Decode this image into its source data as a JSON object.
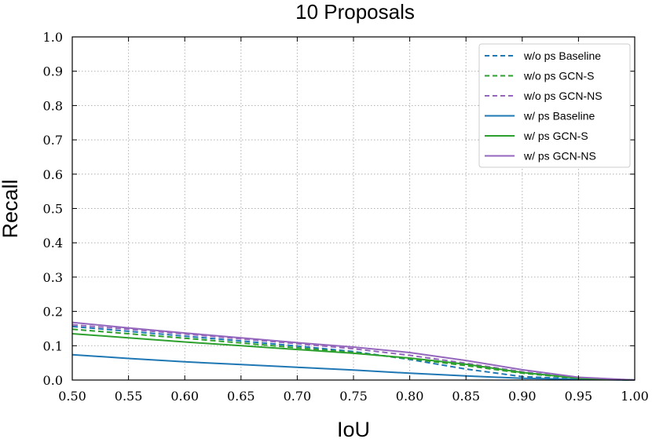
{
  "chart_data": {
    "type": "line",
    "title": "10 Proposals",
    "xlabel": "IoU",
    "ylabel": "Recall",
    "xlim": [
      0.5,
      1.0
    ],
    "ylim": [
      0.0,
      1.0
    ],
    "xticks": [
      "0.50",
      "0.55",
      "0.60",
      "0.65",
      "0.70",
      "0.75",
      "0.80",
      "0.85",
      "0.90",
      "0.95",
      "1.00"
    ],
    "yticks": [
      "0.0",
      "0.1",
      "0.2",
      "0.3",
      "0.4",
      "0.5",
      "0.6",
      "0.7",
      "0.8",
      "0.9",
      "1.0"
    ],
    "grid": true,
    "legend_position": "top-right",
    "x": [
      0.5,
      0.55,
      0.6,
      0.65,
      0.7,
      0.75,
      0.8,
      0.85,
      0.9,
      0.95,
      1.0
    ],
    "series": [
      {
        "name": "w/o ps Baseline",
        "color": "#1f77b4",
        "style": "dashed",
        "values": [
          0.156,
          0.142,
          0.128,
          0.114,
          0.099,
          0.083,
          0.06,
          0.032,
          0.01,
          0.003,
          0.0
        ]
      },
      {
        "name": "w/o ps GCN-S",
        "color": "#2ca02c",
        "style": "dashed",
        "values": [
          0.148,
          0.135,
          0.122,
          0.108,
          0.094,
          0.08,
          0.062,
          0.042,
          0.02,
          0.005,
          0.0
        ]
      },
      {
        "name": "w/o ps GCN-NS",
        "color": "#9467bd",
        "style": "dashed",
        "values": [
          0.161,
          0.148,
          0.134,
          0.12,
          0.106,
          0.091,
          0.072,
          0.049,
          0.024,
          0.006,
          0.0
        ]
      },
      {
        "name": "w/ ps Baseline",
        "color": "#1f77b4",
        "style": "solid",
        "values": [
          0.074,
          0.063,
          0.053,
          0.045,
          0.037,
          0.029,
          0.02,
          0.012,
          0.005,
          0.002,
          0.0
        ]
      },
      {
        "name": "w/ ps GCN-S",
        "color": "#2ca02c",
        "style": "solid",
        "values": [
          0.135,
          0.123,
          0.111,
          0.1,
          0.089,
          0.078,
          0.064,
          0.046,
          0.022,
          0.005,
          0.0
        ]
      },
      {
        "name": "w/ ps GCN-NS",
        "color": "#9467bd",
        "style": "solid",
        "values": [
          0.168,
          0.152,
          0.137,
          0.123,
          0.109,
          0.096,
          0.08,
          0.057,
          0.03,
          0.008,
          0.0
        ]
      }
    ]
  }
}
